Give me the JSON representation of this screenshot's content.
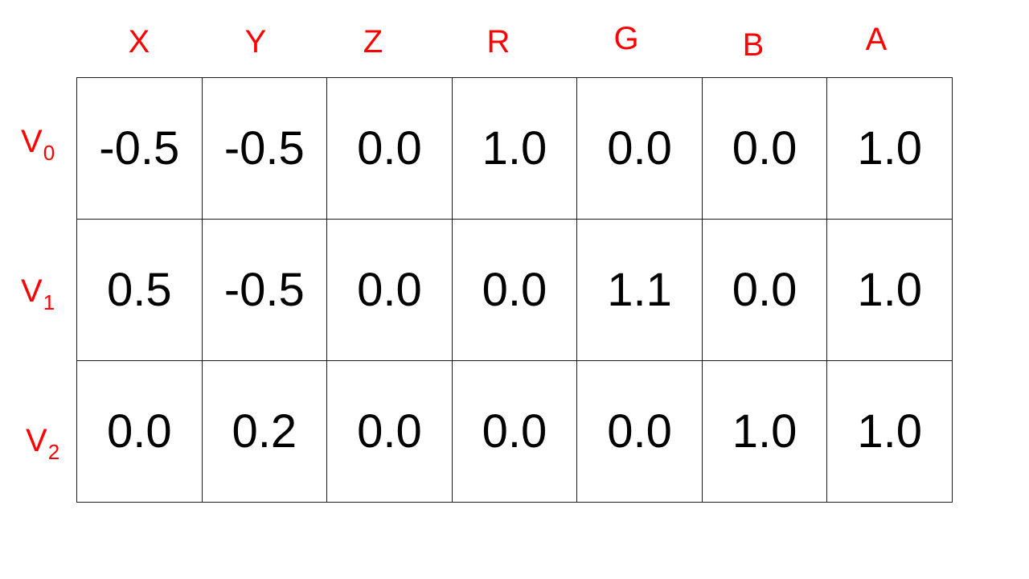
{
  "colors": {
    "label_color": "#ff0000",
    "cell_text": "#000000",
    "grid_line": "#1a1a1a"
  },
  "columns": [
    "X",
    "Y",
    "Z",
    "R",
    "G",
    "B",
    "A"
  ],
  "rows": [
    {
      "label": "V",
      "subscript": "0",
      "values": [
        "-0.5",
        "-0.5",
        "0.0",
        "1.0",
        "0.0",
        "0.0",
        "1.0"
      ]
    },
    {
      "label": "V",
      "subscript": "1",
      "values": [
        "0.5",
        "-0.5",
        "0.0",
        "0.0",
        "1.1",
        "0.0",
        "1.0"
      ]
    },
    {
      "label": "V",
      "subscript": "2",
      "values": [
        "0.0",
        "0.2",
        "0.0",
        "0.0",
        "0.0",
        "1.0",
        "1.0"
      ]
    }
  ]
}
